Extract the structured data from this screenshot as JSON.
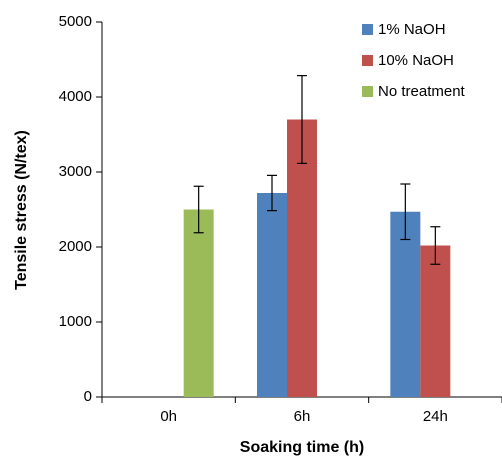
{
  "chart_data": {
    "type": "bar",
    "x_label": "Soaking time (h)",
    "y_label": "Tensile stress (N/tex)",
    "categories": [
      "0h",
      "6h",
      "24h"
    ],
    "series": [
      {
        "name": "1% NaOH",
        "color": "#4f81bd",
        "values": [
          null,
          2720,
          2470
        ],
        "errors": [
          null,
          235,
          370
        ]
      },
      {
        "name": "10% NaOH",
        "color": "#c0504d",
        "values": [
          null,
          3700,
          2020
        ],
        "errors": [
          null,
          585,
          250
        ]
      },
      {
        "name": "No treatment",
        "color": "#9bbb59",
        "values": [
          2500,
          null,
          null
        ],
        "errors": [
          310,
          null,
          null
        ]
      }
    ],
    "ylim": [
      0,
      5000
    ],
    "yticks": [
      0,
      1000,
      2000,
      3000,
      4000,
      5000
    ],
    "legend": "top-right"
  }
}
